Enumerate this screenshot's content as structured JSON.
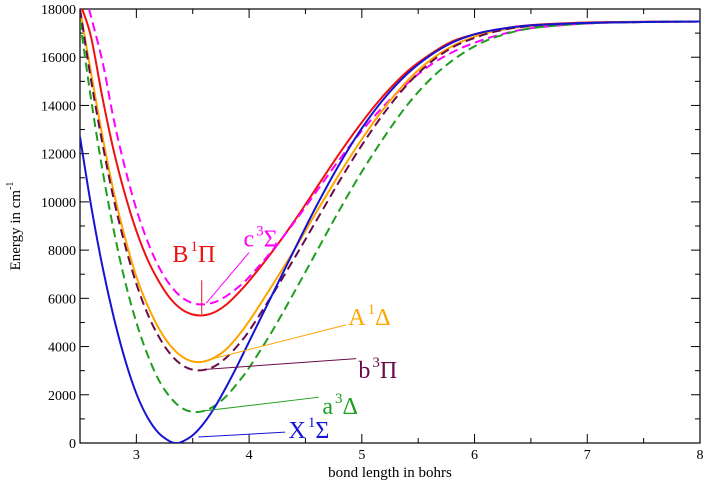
{
  "chart_data": {
    "type": "line",
    "xlabel": "bond length in bohrs",
    "ylabel": "Energy in cm",
    "ylabel_sup": "-1",
    "xlim": [
      2.5,
      8
    ],
    "ylim": [
      0,
      18000
    ],
    "xticks": [
      3,
      4,
      5,
      6,
      7,
      8
    ],
    "yticks": [
      0,
      2000,
      4000,
      6000,
      8000,
      10000,
      12000,
      14000,
      16000,
      18000
    ],
    "grid": false,
    "series": [
      {
        "id": "B1Pi",
        "label": {
          "letter": "B",
          "mult": "1",
          "sym": "Π"
        },
        "color": "#ee1111",
        "dashed": false,
        "x": [
          2.52,
          2.6,
          2.7,
          2.8,
          2.9,
          3.0,
          3.1,
          3.2,
          3.3,
          3.4,
          3.5,
          3.6,
          3.7,
          3.8,
          3.9,
          4.0,
          4.2,
          4.4,
          4.6,
          4.8,
          5.0,
          5.2,
          5.4,
          5.6,
          5.8,
          6.0,
          6.2,
          6.5,
          7.0,
          7.5,
          8.0
        ],
        "y": [
          18000,
          16800,
          14300,
          12100,
          10300,
          8800,
          7600,
          6700,
          6000,
          5550,
          5330,
          5300,
          5440,
          5750,
          6200,
          6720,
          7900,
          9200,
          10600,
          12000,
          13300,
          14450,
          15400,
          16100,
          16650,
          16950,
          17150,
          17330,
          17440,
          17470,
          17480
        ]
      },
      {
        "id": "c3Sigma",
        "label": {
          "letter": "c",
          "mult": "3",
          "sym": "Σ"
        },
        "color": "#ff00ff",
        "dashed": true,
        "x": [
          2.58,
          2.7,
          2.8,
          2.9,
          3.0,
          3.1,
          3.2,
          3.3,
          3.4,
          3.5,
          3.6,
          3.7,
          3.8,
          3.9,
          4.0,
          4.2,
          4.4,
          4.6,
          4.8,
          5.0,
          5.2,
          5.4,
          5.6,
          5.8,
          6.0,
          6.2,
          6.5,
          7.0,
          7.5,
          8.0
        ],
        "y": [
          18000,
          15800,
          13400,
          11400,
          9700,
          8350,
          7300,
          6550,
          6050,
          5800,
          5750,
          5850,
          6100,
          6450,
          6880,
          7950,
          9150,
          10450,
          11750,
          12950,
          14000,
          14900,
          15650,
          16200,
          16600,
          16900,
          17200,
          17400,
          17460,
          17480
        ]
      },
      {
        "id": "A1Delta",
        "label": {
          "letter": "A",
          "mult": "1",
          "sym": "Δ"
        },
        "color": "#ffa500",
        "dashed": false,
        "x": [
          2.5,
          2.6,
          2.7,
          2.8,
          2.9,
          3.0,
          3.1,
          3.2,
          3.3,
          3.4,
          3.5,
          3.6,
          3.7,
          3.8,
          3.9,
          4.0,
          4.2,
          4.4,
          4.6,
          4.8,
          5.0,
          5.2,
          5.4,
          5.6,
          5.8,
          6.0,
          6.2,
          6.5,
          7.0,
          7.5,
          8.0
        ],
        "y": [
          18000,
          15300,
          12700,
          10400,
          8500,
          6900,
          5700,
          4750,
          4050,
          3600,
          3380,
          3380,
          3560,
          3900,
          4420,
          5050,
          6500,
          8000,
          9600,
          11150,
          12600,
          13900,
          15000,
          15850,
          16450,
          16850,
          17100,
          17300,
          17420,
          17460,
          17480
        ]
      },
      {
        "id": "b3Pi",
        "label": {
          "letter": "b",
          "mult": "3",
          "sym": "Π"
        },
        "color": "#6a0a4a",
        "dashed": true,
        "x": [
          2.5,
          2.6,
          2.7,
          2.8,
          2.9,
          3.0,
          3.1,
          3.2,
          3.3,
          3.4,
          3.5,
          3.6,
          3.7,
          3.8,
          3.9,
          4.0,
          4.2,
          4.4,
          4.6,
          4.8,
          5.0,
          5.2,
          5.4,
          5.6,
          5.8,
          6.0,
          6.2,
          6.5,
          7.0,
          7.5,
          8.0
        ],
        "y": [
          18000,
          15000,
          12400,
          10100,
          8200,
          6600,
          5350,
          4400,
          3700,
          3250,
          3040,
          3030,
          3200,
          3550,
          4050,
          4650,
          6100,
          7650,
          9250,
          10850,
          12350,
          13700,
          14850,
          15750,
          16400,
          16800,
          17080,
          17300,
          17420,
          17460,
          17480
        ]
      },
      {
        "id": "a3Delta",
        "label": {
          "letter": "a",
          "mult": "3",
          "sym": "Δ"
        },
        "color": "#1e9e1e",
        "dashed": true,
        "x": [
          2.5,
          2.6,
          2.7,
          2.8,
          2.9,
          3.0,
          3.1,
          3.2,
          3.3,
          3.4,
          3.5,
          3.6,
          3.7,
          3.8,
          3.9,
          4.0,
          4.2,
          4.4,
          4.6,
          4.8,
          5.0,
          5.2,
          5.4,
          5.6,
          5.8,
          6.0,
          6.2,
          6.5,
          7.0,
          7.5,
          8.0
        ],
        "y": [
          17500,
          14200,
          11300,
          8800,
          6700,
          5000,
          3650,
          2600,
          1900,
          1460,
          1290,
          1330,
          1560,
          1950,
          2500,
          3120,
          4600,
          6250,
          7950,
          9650,
          11250,
          12700,
          14000,
          15050,
          15850,
          16450,
          16850,
          17200,
          17400,
          17460,
          17480
        ]
      },
      {
        "id": "X1Sigma",
        "label": {
          "letter": "X",
          "mult": "1",
          "sym": "Σ"
        },
        "color": "#1414d2",
        "dashed": false,
        "x": [
          2.5,
          2.6,
          2.7,
          2.8,
          2.9,
          3.0,
          3.1,
          3.2,
          3.3,
          3.35,
          3.4,
          3.5,
          3.6,
          3.7,
          3.8,
          3.9,
          4.0,
          4.2,
          4.4,
          4.6,
          4.8,
          5.0,
          5.2,
          5.4,
          5.6,
          5.8,
          6.0,
          6.2,
          6.5,
          7.0,
          7.5,
          8.0
        ],
        "y": [
          12700,
          9800,
          7300,
          5200,
          3450,
          2050,
          1050,
          400,
          60,
          0,
          40,
          320,
          830,
          1520,
          2350,
          3250,
          4200,
          6100,
          8000,
          9850,
          11550,
          13050,
          14300,
          15300,
          16050,
          16600,
          16950,
          17150,
          17320,
          17420,
          17460,
          17480
        ]
      }
    ],
    "annotations": [
      {
        "id": "B1Pi",
        "letter": "B",
        "mult": "1",
        "sym": "Π",
        "color": "#ee1111",
        "text_at": [
          3.32,
          7500
        ],
        "line_from": [
          3.58,
          6750
        ],
        "line_to": [
          3.58,
          5350
        ]
      },
      {
        "id": "c3Sigma",
        "letter": "c",
        "mult": "3",
        "sym": "Σ",
        "color": "#ff00ff",
        "text_at": [
          3.95,
          8150
        ],
        "line_from": [
          4.0,
          7900
        ],
        "line_to": [
          3.62,
          5800
        ]
      },
      {
        "id": "A1Delta",
        "letter": "A",
        "mult": "1",
        "sym": "Δ",
        "color": "#ffa500",
        "text_at": [
          4.88,
          4900
        ],
        "line_from": [
          4.86,
          4900
        ],
        "line_to": [
          3.6,
          3400
        ]
      },
      {
        "id": "b3Pi",
        "letter": "b",
        "mult": "3",
        "sym": "Π",
        "color": "#6a0a4a",
        "text_at": [
          4.97,
          2700
        ],
        "line_from": [
          4.95,
          3500
        ],
        "line_to": [
          3.6,
          3050
        ]
      },
      {
        "id": "a3Delta",
        "letter": "a",
        "mult": "3",
        "sym": "Δ",
        "color": "#1e9e1e",
        "text_at": [
          4.65,
          1200
        ],
        "line_from": [
          4.62,
          1900
        ],
        "line_to": [
          3.6,
          1330
        ]
      },
      {
        "id": "X1Sigma",
        "letter": "X",
        "mult": "1",
        "sym": "Σ",
        "color": "#1414d2",
        "text_at": [
          4.35,
          200
        ],
        "line_from": [
          4.32,
          450
        ],
        "line_to": [
          3.55,
          250
        ]
      }
    ]
  }
}
